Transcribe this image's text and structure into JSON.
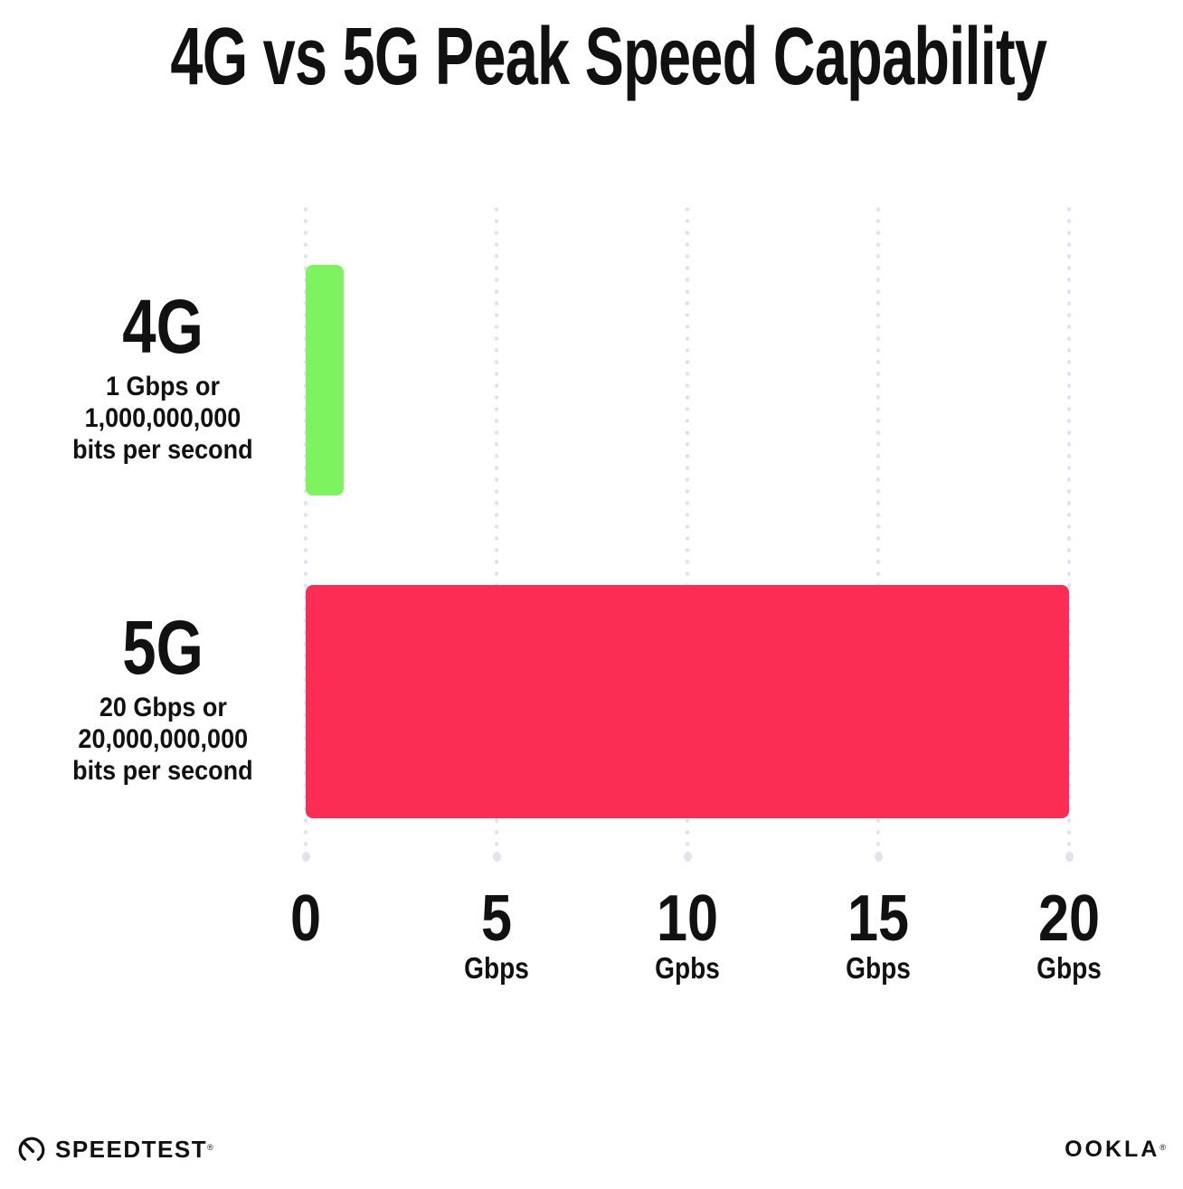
{
  "title": "4G vs 5G Peak Speed Capability",
  "chart_data": {
    "type": "bar",
    "orientation": "horizontal",
    "title": "4G vs 5G Peak Speed Capability",
    "categories": [
      "4G",
      "5G"
    ],
    "values": [
      1,
      20
    ],
    "xlabel": "Gbps",
    "xlim": [
      0,
      20
    ],
    "grid": "vertical dotted gridlines at each tick, terminal dot at bottom",
    "grid_color": "#E3E3EF",
    "background_color": "#FFFFFF",
    "text_color": "#111111",
    "legend": "none",
    "xticks": [
      {
        "value": 0,
        "number": "0",
        "unit": ""
      },
      {
        "value": 5,
        "number": "5",
        "unit": "Gbps"
      },
      {
        "value": 10,
        "number": "10",
        "unit": "Gpbs"
      },
      {
        "value": 15,
        "number": "15",
        "unit": "Gbps"
      },
      {
        "value": 20,
        "number": "20",
        "unit": "Gbps"
      }
    ],
    "rows": [
      {
        "label": "4G",
        "sublabel_lines": [
          "1 Gbps or",
          "1,000,000,000",
          "bits per second"
        ],
        "value": 1,
        "color": "#7DF35F"
      },
      {
        "label": "5G",
        "sublabel_lines": [
          "20 Gbps or",
          "20,000,000,000",
          "bits per second"
        ],
        "value": 20,
        "color": "#FC2D55"
      }
    ]
  },
  "footer": {
    "speedtest_label": "SPEEDTEST",
    "speedtest_trademark": "®",
    "ookla_label": "OOKLA",
    "ookla_trademark": "®"
  }
}
